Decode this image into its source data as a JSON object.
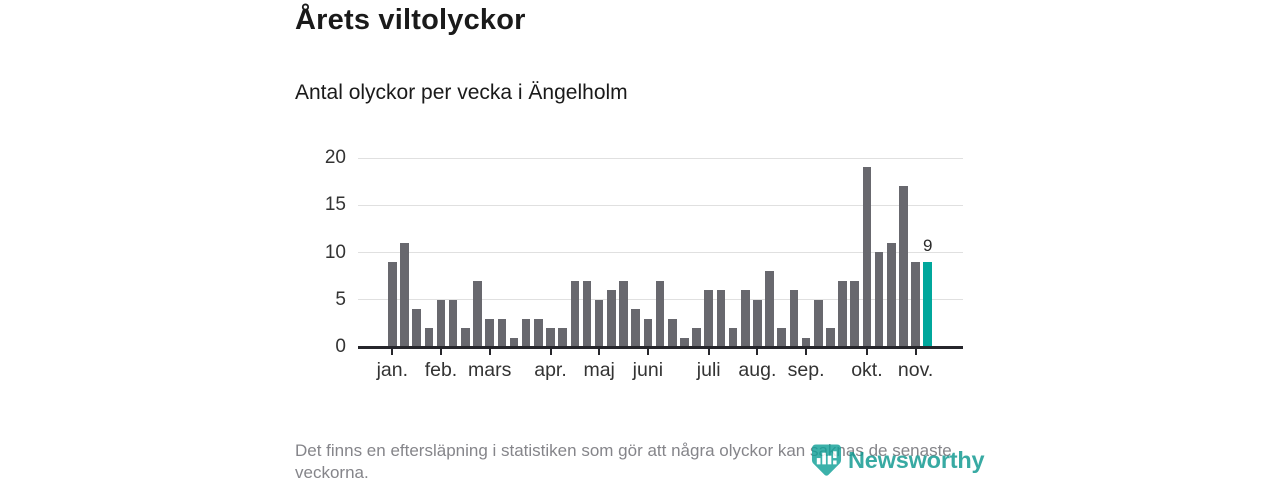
{
  "header": {
    "title": "Årets viltolyckor",
    "subtitle": "Antal olyckor per vecka i Ängelholm"
  },
  "chart_data": {
    "type": "bar",
    "title": "Årets viltolyckor",
    "subtitle": "Antal olyckor per vecka i Ängelholm",
    "x_unit": "vecka (week)",
    "ylabel": "",
    "xlabel": "",
    "ylim": [
      0,
      20
    ],
    "y_ticks": [
      0,
      5,
      10,
      15,
      20
    ],
    "grid": true,
    "legend": "none",
    "values": [
      9,
      11,
      4,
      2,
      5,
      5,
      2,
      7,
      3,
      3,
      1,
      3,
      3,
      2,
      2,
      7,
      7,
      5,
      6,
      7,
      4,
      3,
      7,
      3,
      1,
      2,
      6,
      6,
      2,
      6,
      5,
      8,
      2,
      6,
      1,
      5,
      2,
      7,
      7,
      19,
      10,
      11,
      17,
      9,
      9
    ],
    "highlight_index": 44,
    "highlight_value_label": "9",
    "month_ticks": [
      {
        "label": "jan.",
        "week_index": 0
      },
      {
        "label": "feb.",
        "week_index": 4
      },
      {
        "label": "mars",
        "week_index": 8
      },
      {
        "label": "apr.",
        "week_index": 13
      },
      {
        "label": "maj",
        "week_index": 17
      },
      {
        "label": "juni",
        "week_index": 21
      },
      {
        "label": "juli",
        "week_index": 26
      },
      {
        "label": "aug.",
        "week_index": 30
      },
      {
        "label": "sep.",
        "week_index": 34
      },
      {
        "label": "okt.",
        "week_index": 39
      },
      {
        "label": "nov.",
        "week_index": 43
      }
    ],
    "colors": {
      "bar": "#68686e",
      "highlight": "#00a79c",
      "grid": "#e0e0e0",
      "axis": "#26262b",
      "tick_label": "#333333"
    }
  },
  "footer": {
    "note": "Det finns en eftersläpning i statistiken som gör att några olyckor kan saknas de senaste veckorna.",
    "attribution": "Newsworthy",
    "logo_icon": "newsworthy-bar-chart-marker-icon",
    "brand_color": "#0d988f"
  }
}
